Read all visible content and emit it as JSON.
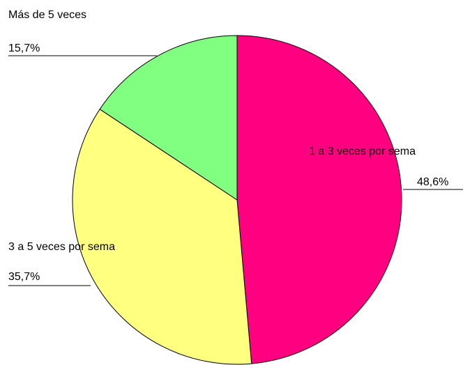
{
  "chart_data": {
    "type": "pie",
    "categories": [
      "1 a 3 veces por sema",
      "3 a 5 veces por sema",
      "Más de 5 veces"
    ],
    "values": [
      48.6,
      35.7,
      15.7
    ],
    "value_labels": [
      "48,6%",
      "35,7%",
      "15,7%"
    ],
    "colors": [
      "#ff0080",
      "#ffff80",
      "#80ff80"
    ]
  }
}
